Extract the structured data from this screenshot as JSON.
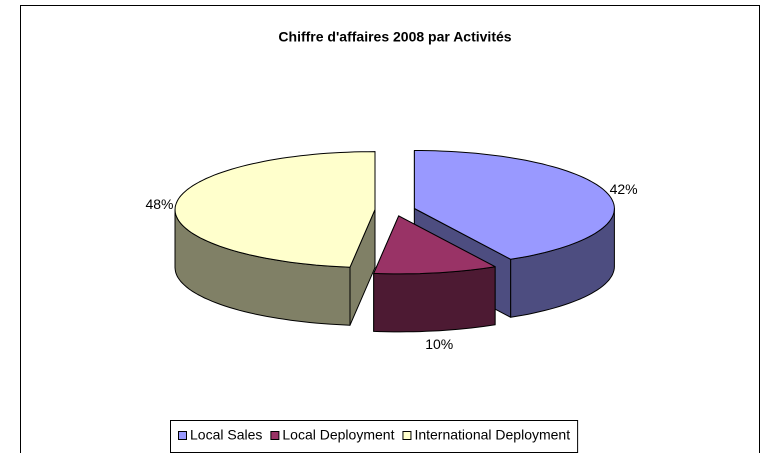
{
  "chart_data": {
    "type": "pie3d",
    "title": "Chiffre d'affaires 2008 par Activités",
    "categories": [
      "Local Sales",
      "Local Deployment",
      "International Deployment"
    ],
    "values": [
      42,
      10,
      48
    ],
    "value_labels": [
      "42%",
      "10%",
      "48%"
    ],
    "colors": [
      "#9999ff",
      "#993366",
      "#ffffcc"
    ],
    "legend": "bottom"
  }
}
